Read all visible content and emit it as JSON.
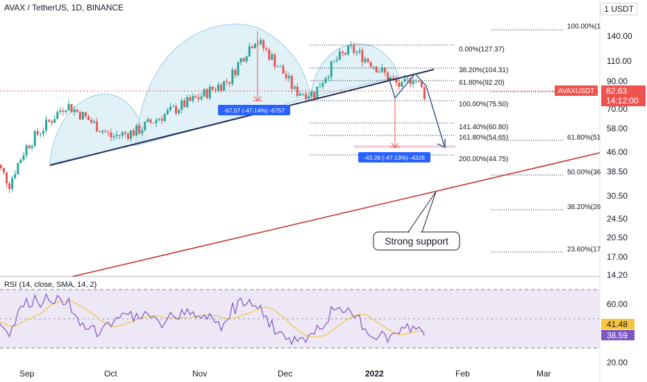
{
  "header": {
    "title": "AVAX / TetherUS, 1D, BINANCE",
    "unit": "USDT",
    "unit_prefix": "1"
  },
  "price_axis": {
    "ticks": [
      "140.00",
      "110.00",
      "90.00",
      "70.00",
      "58.00",
      "46.00",
      "38.50",
      "30.50",
      "24.50",
      "20.50",
      "17.00",
      "14.20"
    ]
  },
  "rsi_axis": {
    "ticks": [
      "60.00",
      "20.00"
    ]
  },
  "time_axis": {
    "ticks": [
      "Sep",
      "Oct",
      "Nov",
      "Dec",
      "2022",
      "Feb",
      "Mar"
    ]
  },
  "last_price": {
    "symbol": "AVAXUSDT",
    "price": "82.63",
    "countdown": "14:12:00"
  },
  "rsi_values": {
    "rsi": "38.59",
    "sma": "41.48"
  },
  "rsi_label": "RSI (14, close, SMA, 14, 2)",
  "fib_labels_inner": [
    "0.00%(127.37)",
    "38.20%(104.31)",
    "61.80%(92.20)",
    "100.00%(75.50)",
    "141.40%(60.80)",
    "161.80%(54.65)",
    "200.00%(44.75)"
  ],
  "fib_labels_outer": [
    "100.00%(1",
    "61.80%(51",
    "50.00%(36",
    "38.20%(26",
    "23.60%(17"
  ],
  "measure_labels": {
    "first": "-67.57 (-47.14%) -6757",
    "second": "-43.26 (-47.13%) -4326"
  },
  "callout": "Strong support",
  "colors": {
    "up": "#26a69a",
    "down": "#ef5350",
    "rsi_line": "#7e57c2",
    "rsi_sma": "#f5c542",
    "trendline": "#1e2a5a",
    "support": "#c62828",
    "measure_box": "#2962ff",
    "dome_fill": "#d6ecf5",
    "dome_stroke": "#9ccbe0",
    "rsi_band": "#ede7f6"
  },
  "chart_data": {
    "type": "candlestick",
    "symbol": "AVAX / TetherUS",
    "interval": "1D",
    "exchange": "BINANCE",
    "scale": "log",
    "x_axis": [
      "Sep",
      "Oct",
      "Nov",
      "Dec",
      "2022",
      "Feb",
      "Mar"
    ],
    "y_axis_ticks": [
      140.0,
      110.0,
      90.0,
      70.0,
      58.0,
      46.0,
      38.5,
      30.5,
      24.5,
      20.5,
      17.0,
      14.2
    ],
    "ylim": [
      14.2,
      170
    ],
    "approx_close_path": [
      {
        "date": "2021-08-20",
        "value": 45
      },
      {
        "date": "2021-08-26",
        "value": 35
      },
      {
        "date": "2021-09-01",
        "value": 50
      },
      {
        "date": "2021-09-10",
        "value": 65
      },
      {
        "date": "2021-09-15",
        "value": 75
      },
      {
        "date": "2021-09-25",
        "value": 62
      },
      {
        "date": "2021-10-01",
        "value": 55
      },
      {
        "date": "2021-10-10",
        "value": 58
      },
      {
        "date": "2021-10-20",
        "value": 68
      },
      {
        "date": "2021-11-01",
        "value": 80
      },
      {
        "date": "2021-11-12",
        "value": 95
      },
      {
        "date": "2021-11-21",
        "value": 140
      },
      {
        "date": "2021-11-30",
        "value": 105
      },
      {
        "date": "2021-12-05",
        "value": 85
      },
      {
        "date": "2021-12-12",
        "value": 83
      },
      {
        "date": "2021-12-20",
        "value": 115
      },
      {
        "date": "2021-12-25",
        "value": 127
      },
      {
        "date": "2022-01-01",
        "value": 112
      },
      {
        "date": "2022-01-08",
        "value": 95
      },
      {
        "date": "2022-01-12",
        "value": 88
      },
      {
        "date": "2022-01-16",
        "value": 98
      },
      {
        "date": "2022-01-20",
        "value": 82.63
      }
    ],
    "last_price": 82.63,
    "fibonacci_inner": [
      {
        "level": "0.00%",
        "price": 127.37
      },
      {
        "level": "38.20%",
        "price": 104.31
      },
      {
        "level": "61.80%",
        "price": 92.2
      },
      {
        "level": "100.00%",
        "price": 75.5
      },
      {
        "level": "141.40%",
        "price": 60.8
      },
      {
        "level": "161.80%",
        "price": 54.65
      },
      {
        "level": "200.00%",
        "price": 44.75
      }
    ],
    "measurements": [
      {
        "change": -67.57,
        "percent": -47.14,
        "ticks": -6757
      },
      {
        "change": -43.26,
        "percent": -47.13,
        "ticks": -4326
      }
    ],
    "rsi": {
      "period": 14,
      "current": 38.59,
      "sma": 41.48
    },
    "annotations": [
      "Strong support"
    ]
  }
}
